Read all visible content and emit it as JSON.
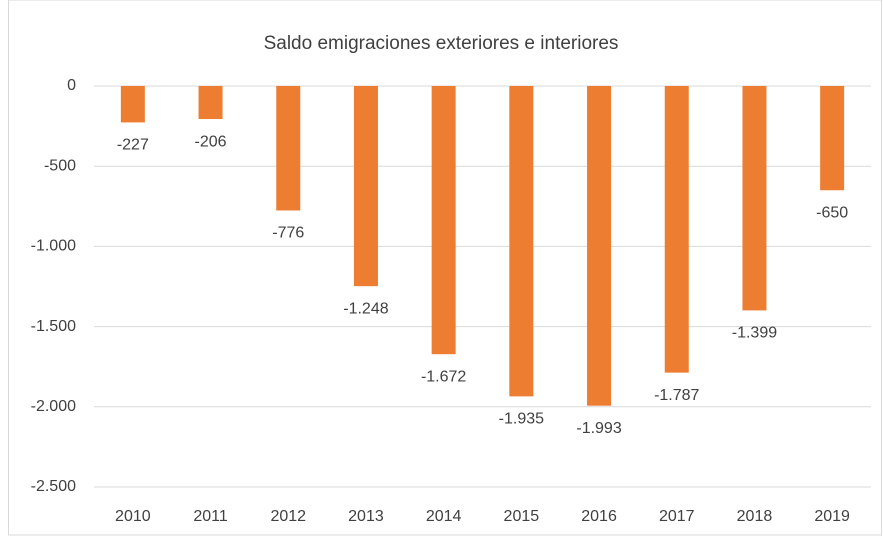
{
  "chart_data": {
    "type": "bar",
    "title": "Saldo emigraciones exteriores e interiores",
    "categories": [
      "2010",
      "2011",
      "2012",
      "2013",
      "2014",
      "2015",
      "2016",
      "2017",
      "2018",
      "2019"
    ],
    "values": [
      -227,
      -206,
      -776,
      -1248,
      -1672,
      -1935,
      -1993,
      -1787,
      -1399,
      -650
    ],
    "value_labels": [
      "-227",
      "-206",
      "-776",
      "-1.248",
      "-1.672",
      "-1.935",
      "-1.993",
      "-1.787",
      "-1.399",
      "-650"
    ],
    "color": "#ed7d31",
    "ylim": [
      -2500,
      0
    ],
    "yticks": [
      0,
      -500,
      {
        "value": -1000,
        "label": "-1.000"
      },
      {
        "value": -1500,
        "label": "-1.500"
      },
      {
        "value": -2000,
        "label": "-2.000"
      },
      {
        "value": -2500,
        "label": "-2.500"
      }
    ],
    "grid": true
  }
}
